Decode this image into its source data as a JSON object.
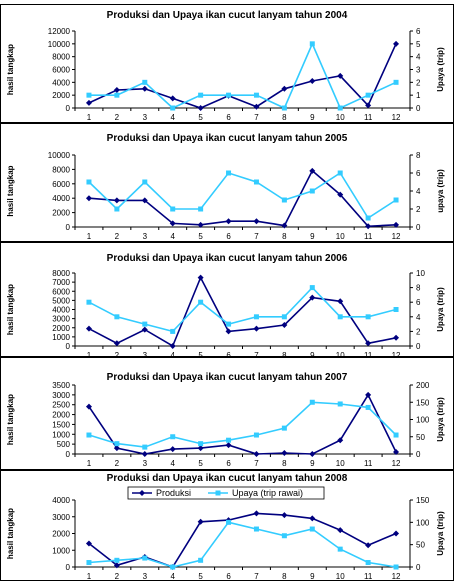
{
  "colors": {
    "produksi": "#00007f",
    "upaya": "#33ccff",
    "axis": "#000000",
    "frame": "#000000",
    "legend_border": "#000000"
  },
  "chart_data": [
    {
      "type": "line",
      "title": "Produksi dan Upaya ikan cucut lanyam tahun 2004",
      "ylabel": "hasil tangkap",
      "y2label": "Upaya (trip)",
      "categories": [
        "1",
        "2",
        "3",
        "4",
        "5",
        "6",
        "7",
        "8",
        "9",
        "10",
        "11",
        "12"
      ],
      "ylim": [
        0,
        12000
      ],
      "yticks": [
        0,
        2000,
        4000,
        6000,
        8000,
        10000,
        12000
      ],
      "y2lim": [
        0,
        6
      ],
      "y2ticks": [
        0,
        1,
        2,
        3,
        4,
        5,
        6
      ],
      "series": [
        {
          "key": "produksi",
          "axis": "left",
          "values": [
            800,
            2800,
            3000,
            1500,
            0,
            1900,
            200,
            3000,
            4200,
            5000,
            400,
            10000
          ]
        },
        {
          "key": "upaya",
          "axis": "right",
          "values": [
            1,
            1,
            2,
            0,
            1,
            1,
            1,
            0,
            5,
            0,
            1,
            2
          ]
        }
      ]
    },
    {
      "type": "line",
      "title": "Produksi dan Upaya ikan cucut lanyam tahun 2005",
      "ylabel": "hasil tangkap",
      "y2label": "upaya (trip)",
      "categories": [
        "1",
        "2",
        "3",
        "4",
        "5",
        "6",
        "7",
        "8",
        "9",
        "10",
        "11",
        "12"
      ],
      "ylim": [
        0,
        10000
      ],
      "yticks": [
        0,
        2000,
        4000,
        6000,
        8000,
        10000
      ],
      "y2lim": [
        0,
        8
      ],
      "y2ticks": [
        0,
        2,
        4,
        6,
        8
      ],
      "series": [
        {
          "key": "produksi",
          "axis": "left",
          "values": [
            4000,
            3700,
            3700,
            500,
            300,
            800,
            800,
            200,
            7800,
            4500,
            100,
            300
          ]
        },
        {
          "key": "upaya",
          "axis": "right",
          "values": [
            5,
            2,
            5,
            2,
            2,
            6,
            5,
            3,
            4,
            6,
            1,
            3
          ]
        }
      ]
    },
    {
      "type": "line",
      "title": "Produksi dan Upaya  ikan cucut lanyam tahun 2006",
      "ylabel": "hasil tangkap",
      "y2label": "Upaya (trip)",
      "categories": [
        "1",
        "2",
        "3",
        "4",
        "5",
        "6",
        "7",
        "8",
        "9",
        "10",
        "11",
        "12"
      ],
      "ylim": [
        0,
        8000
      ],
      "yticks": [
        0,
        1000,
        2000,
        3000,
        4000,
        5000,
        6000,
        7000,
        8000
      ],
      "y2lim": [
        0,
        10
      ],
      "y2ticks": [
        0,
        2,
        4,
        6,
        8,
        10
      ],
      "series": [
        {
          "key": "produksi",
          "axis": "left",
          "values": [
            1900,
            300,
            1800,
            0,
            7500,
            1600,
            1900,
            2300,
            5300,
            4900,
            300,
            900
          ]
        },
        {
          "key": "upaya",
          "axis": "right",
          "values": [
            6,
            4,
            3,
            2,
            6,
            3,
            4,
            4,
            8,
            4,
            4,
            5
          ]
        }
      ]
    },
    {
      "type": "line",
      "title": "Produksi dan Upaya ikan cucut lanyam tahun 2007",
      "ylabel": "hasil tangkap",
      "y2label": "Upaya (trip)",
      "categories": [
        "1",
        "2",
        "3",
        "4",
        "5",
        "6",
        "7",
        "8",
        "9",
        "10",
        "11",
        "12"
      ],
      "ylim": [
        0,
        3500
      ],
      "yticks": [
        0,
        500,
        1000,
        1500,
        2000,
        2500,
        3000,
        3500
      ],
      "y2lim": [
        0,
        200
      ],
      "y2ticks": [
        0,
        50,
        100,
        150,
        200
      ],
      "series": [
        {
          "key": "produksi",
          "axis": "left",
          "values": [
            2400,
            300,
            0,
            250,
            300,
            450,
            0,
            50,
            0,
            700,
            3000,
            100
          ]
        },
        {
          "key": "upaya",
          "axis": "right",
          "values": [
            55,
            30,
            20,
            50,
            30,
            40,
            55,
            75,
            150,
            145,
            135,
            55
          ]
        }
      ]
    },
    {
      "type": "line",
      "title": "Produksi dan Upaya ikan cucut lanyam tahun 2008",
      "ylabel": "hasil tangkap",
      "y2label": "Upaya (trip)",
      "categories": [
        "1",
        "2",
        "3",
        "4",
        "5",
        "6",
        "7",
        "8",
        "9",
        "10",
        "11",
        "12"
      ],
      "ylim": [
        0,
        4000
      ],
      "yticks": [
        0,
        1000,
        2000,
        3000,
        4000
      ],
      "y2lim": [
        0,
        150
      ],
      "y2ticks": [
        0,
        50,
        100,
        150
      ],
      "legend": {
        "placement": "top-center",
        "entries": [
          "Produksi",
          "Upaya (trip rawai)"
        ]
      },
      "series": [
        {
          "key": "produksi",
          "axis": "left",
          "values": [
            1400,
            100,
            600,
            0,
            2700,
            2800,
            3200,
            3100,
            2900,
            2200,
            1300,
            2000
          ]
        },
        {
          "key": "upaya",
          "axis": "right",
          "values": [
            10,
            15,
            20,
            0,
            15,
            100,
            85,
            70,
            85,
            40,
            10,
            0
          ]
        }
      ]
    }
  ]
}
